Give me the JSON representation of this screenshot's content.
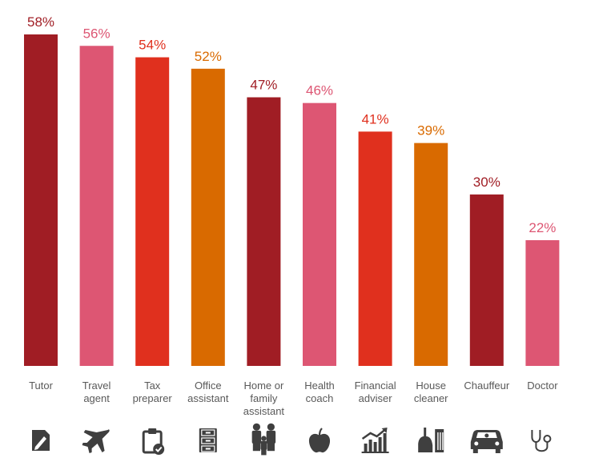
{
  "chart_data": {
    "type": "bar",
    "categories": [
      "Tutor",
      "Travel agent",
      "Tax preparer",
      "Office assistant",
      "Home or family assistant",
      "Health coach",
      "Financial adviser",
      "House cleaner",
      "Chauffeur",
      "Doctor"
    ],
    "category_lines": [
      [
        "Tutor"
      ],
      [
        "Travel",
        "agent"
      ],
      [
        "Tax",
        "preparer"
      ],
      [
        "Office",
        "assistant"
      ],
      [
        "Home or",
        "family",
        "assistant"
      ],
      [
        "Health",
        "coach"
      ],
      [
        "Financial",
        "adviser"
      ],
      [
        "House",
        "cleaner"
      ],
      [
        "Chauffeur"
      ],
      [
        "Doctor"
      ]
    ],
    "values": [
      58,
      56,
      54,
      52,
      47,
      46,
      41,
      39,
      30,
      22
    ],
    "value_labels": [
      "58%",
      "56%",
      "54%",
      "52%",
      "47%",
      "46%",
      "41%",
      "39%",
      "30%",
      "22%"
    ],
    "colors": [
      "#a01d24",
      "#dd5673",
      "#e0301e",
      "#d96a00",
      "#a01d24",
      "#dd5673",
      "#e0301e",
      "#d96a00",
      "#a01d24",
      "#dd5673"
    ],
    "icons": [
      "document-pencil-icon",
      "airplane-icon",
      "clipboard-check-icon",
      "file-cabinet-icon",
      "family-icon",
      "apple-icon",
      "rising-chart-icon",
      "broom-bucket-icon",
      "car-icon",
      "stethoscope-icon"
    ],
    "ylim": [
      0,
      58
    ],
    "grid": false,
    "legend": "none"
  }
}
